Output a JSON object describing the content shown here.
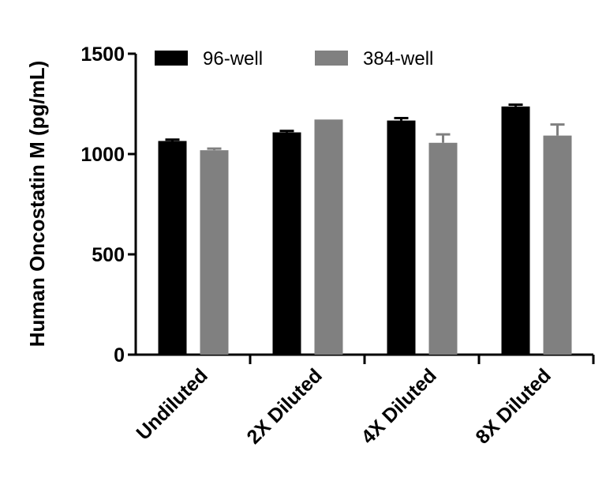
{
  "chart_data": {
    "type": "bar",
    "title": "",
    "xlabel": "",
    "ylabel": "Human Oncostatin M (pg/mL)",
    "ylim": [
      0,
      1500
    ],
    "yticks": [
      0,
      500,
      1000,
      1500
    ],
    "categories": [
      "Undiluted",
      "2X Diluted",
      "4X Diluted",
      "8X Diluted"
    ],
    "series": [
      {
        "name": "96-well",
        "color": "#000000",
        "values": [
          1065,
          1108,
          1167,
          1237
        ],
        "errors": [
          7,
          7,
          12,
          9
        ]
      },
      {
        "name": "384-well",
        "color": "#808080",
        "values": [
          1019,
          1172,
          1056,
          1092
        ],
        "errors": [
          8,
          0,
          42,
          55
        ]
      }
    ],
    "legend": "top-left",
    "grid": false
  }
}
